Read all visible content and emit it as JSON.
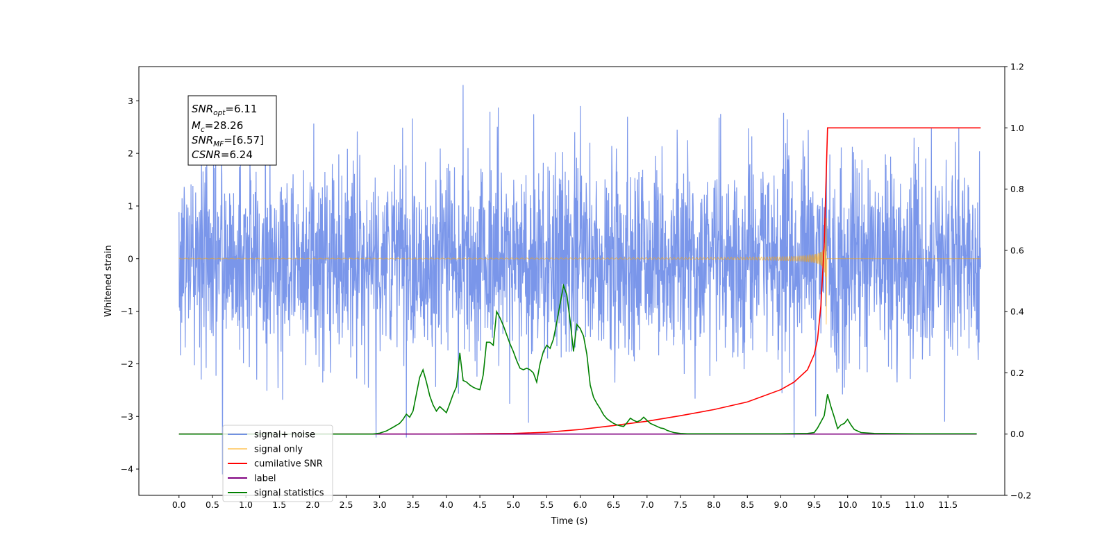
{
  "chart_data": {
    "type": "line",
    "xlabel": "Time (s)",
    "ylabel": "Whitened strain",
    "xlim": [
      -0.6,
      12.35
    ],
    "ylim": [
      -4.5,
      3.65
    ],
    "y2lim": [
      -0.2,
      1.2
    ],
    "x_ticks": [
      "0.0",
      "0.5",
      "1.0",
      "1.5",
      "2.0",
      "2.5",
      "3.0",
      "3.5",
      "4.0",
      "4.5",
      "5.0",
      "5.5",
      "6.0",
      "6.5",
      "7.0",
      "7.5",
      "8.0",
      "8.5",
      "9.0",
      "9.5",
      "10.0",
      "10.5",
      "11.0",
      "11.5"
    ],
    "y_ticks": [
      "3",
      "2",
      "1",
      "0",
      "−1",
      "−2",
      "−3",
      "−4"
    ],
    "y_ticks_values": [
      3,
      2,
      1,
      0,
      -1,
      -2,
      -3,
      -4
    ],
    "y2_ticks": [
      "1.2",
      "1.0",
      "0.8",
      "0.6",
      "0.4",
      "0.2",
      "0.0",
      "−0.2"
    ],
    "y2_ticks_values": [
      1.2,
      1.0,
      0.8,
      0.6,
      0.4,
      0.2,
      0.0,
      -0.2
    ],
    "grid": false,
    "legend_placement": "lower-left",
    "annotation": {
      "snr_opt": {
        "var": "SNR",
        "sub": "opt",
        "value": "=6.11"
      },
      "mc": {
        "var": "M",
        "sub": "c",
        "value": "=28.26"
      },
      "snr_mf": {
        "var": "SNR",
        "sub": "MF",
        "value": "=[6.57]"
      },
      "csnr": {
        "var": "CSNR",
        "sub": "",
        "value": "=6.24"
      }
    },
    "series": [
      {
        "name": "signal+ noise",
        "color": "#4169e1",
        "axis": "left",
        "kind": "noise",
        "x_range": [
          0.0,
          11.99
        ],
        "amplitude_sigma": 1.0,
        "extrema_points": [
          [
            0.65,
            -4.1
          ],
          [
            4.25,
            3.3
          ],
          [
            2.95,
            -3.4
          ],
          [
            3.4,
            -3.4
          ],
          [
            9.2,
            -3.4
          ],
          [
            9.52,
            -3.0
          ],
          [
            11.45,
            -3.1
          ],
          [
            6.0,
            2.9
          ],
          [
            8.1,
            2.75
          ]
        ]
      },
      {
        "name": "signal only",
        "color": "#ffa500",
        "axis": "left",
        "kind": "chirp",
        "t_merger": 9.68,
        "end_x": 11.99,
        "peak_amplitude": 0.9,
        "min_value": -1.25
      },
      {
        "name": "cumilative SNR",
        "color": "#ff0000",
        "axis": "right",
        "x": [
          0.0,
          3.0,
          4.0,
          5.0,
          5.5,
          6.0,
          6.5,
          7.0,
          7.5,
          8.0,
          8.5,
          9.0,
          9.2,
          9.4,
          9.5,
          9.55,
          9.6,
          9.65,
          9.68,
          9.7,
          11.99
        ],
        "y": [
          0.0,
          0.0,
          0.0,
          0.002,
          0.006,
          0.015,
          0.028,
          0.042,
          0.06,
          0.08,
          0.105,
          0.145,
          0.17,
          0.21,
          0.26,
          0.31,
          0.42,
          0.62,
          0.85,
          1.0,
          1.0
        ]
      },
      {
        "name": "label",
        "color": "#800080",
        "axis": "right",
        "x": [
          0.0,
          11.93
        ],
        "y": [
          0.0,
          0.0
        ]
      },
      {
        "name": "signal statistics",
        "color": "#008000",
        "axis": "right",
        "x": [
          0.0,
          2.9,
          3.0,
          3.1,
          3.2,
          3.3,
          3.35,
          3.4,
          3.45,
          3.5,
          3.55,
          3.6,
          3.65,
          3.7,
          3.75,
          3.8,
          3.85,
          3.9,
          3.95,
          4.0,
          4.05,
          4.1,
          4.15,
          4.2,
          4.25,
          4.3,
          4.35,
          4.4,
          4.45,
          4.5,
          4.55,
          4.6,
          4.65,
          4.7,
          4.75,
          4.8,
          4.85,
          4.9,
          4.95,
          5.0,
          5.05,
          5.1,
          5.15,
          5.2,
          5.25,
          5.3,
          5.35,
          5.4,
          5.45,
          5.5,
          5.55,
          5.6,
          5.65,
          5.7,
          5.75,
          5.8,
          5.85,
          5.9,
          5.95,
          6.0,
          6.05,
          6.1,
          6.15,
          6.2,
          6.25,
          6.3,
          6.35,
          6.4,
          6.45,
          6.5,
          6.55,
          6.6,
          6.65,
          6.7,
          6.75,
          6.8,
          6.85,
          6.9,
          6.95,
          7.0,
          7.05,
          7.1,
          7.15,
          7.2,
          7.25,
          7.3,
          7.4,
          7.5,
          7.6,
          8.0,
          9.0,
          9.4,
          9.5,
          9.55,
          9.6,
          9.65,
          9.7,
          9.75,
          9.8,
          9.85,
          9.9,
          9.95,
          10.0,
          10.05,
          10.1,
          10.2,
          10.4,
          11.0,
          11.93
        ],
        "y": [
          0.0,
          0.0,
          0.003,
          0.01,
          0.022,
          0.035,
          0.048,
          0.065,
          0.055,
          0.075,
          0.13,
          0.185,
          0.21,
          0.17,
          0.125,
          0.095,
          0.075,
          0.09,
          0.08,
          0.07,
          0.1,
          0.13,
          0.155,
          0.265,
          0.175,
          0.17,
          0.16,
          0.153,
          0.148,
          0.145,
          0.193,
          0.3,
          0.3,
          0.29,
          0.4,
          0.38,
          0.355,
          0.325,
          0.295,
          0.27,
          0.24,
          0.215,
          0.21,
          0.215,
          0.21,
          0.2,
          0.17,
          0.23,
          0.27,
          0.29,
          0.28,
          0.31,
          0.365,
          0.425,
          0.485,
          0.455,
          0.37,
          0.27,
          0.358,
          0.345,
          0.32,
          0.26,
          0.16,
          0.12,
          0.1,
          0.083,
          0.063,
          0.05,
          0.042,
          0.035,
          0.03,
          0.027,
          0.025,
          0.037,
          0.052,
          0.045,
          0.04,
          0.045,
          0.055,
          0.045,
          0.035,
          0.03,
          0.025,
          0.02,
          0.018,
          0.012,
          0.005,
          0.002,
          0.001,
          0.001,
          0.001,
          0.002,
          0.005,
          0.02,
          0.04,
          0.06,
          0.13,
          0.09,
          0.055,
          0.018,
          0.03,
          0.035,
          0.048,
          0.03,
          0.015,
          0.005,
          0.002,
          0.001,
          0.001
        ]
      },
      {
        "name": "signal only",
        "color": "#ff6600",
        "axis": "right",
        "kind": "hidden_under_legend",
        "x": [],
        "y": []
      }
    ]
  },
  "legend": [
    {
      "label": "signal+ noise",
      "color": "#4169e1",
      "opacity": 0.7
    },
    {
      "label": "signal only",
      "color": "#ffa500",
      "opacity": 0.5
    },
    {
      "label": "cumilative SNR",
      "color": "#ff0000",
      "opacity": 1
    },
    {
      "label": "label",
      "color": "#800080",
      "opacity": 1
    },
    {
      "label": "signal statistics",
      "color": "#008000",
      "opacity": 1
    }
  ]
}
